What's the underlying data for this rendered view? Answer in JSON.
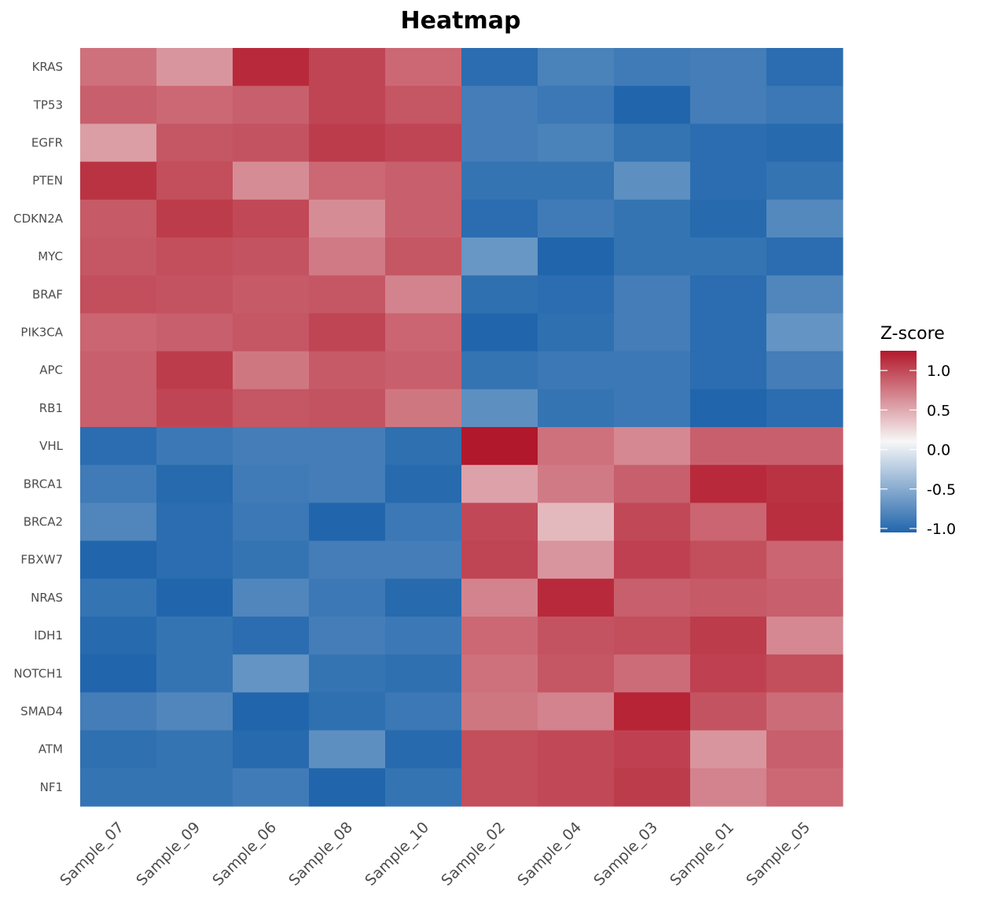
{
  "chart_data": {
    "type": "heatmap",
    "title": "Heatmap",
    "xlabel": "",
    "ylabel": "",
    "x_categories": [
      "Sample_07",
      "Sample_09",
      "Sample_06",
      "Sample_08",
      "Sample_10",
      "Sample_02",
      "Sample_04",
      "Sample_03",
      "Sample_01",
      "Sample_05"
    ],
    "y_categories": [
      "KRAS",
      "TP53",
      "EGFR",
      "PTEN",
      "CDKN2A",
      "MYC",
      "BRAF",
      "PIK3CA",
      "APC",
      "RB1",
      "VHL",
      "BRCA1",
      "BRCA2",
      "FBXW7",
      "NRAS",
      "IDH1",
      "NOTCH1",
      "SMAD4",
      "ATM",
      "NF1"
    ],
    "values": [
      [
        0.75,
        0.55,
        1.15,
        1.0,
        0.8,
        -1.0,
        -0.85,
        -0.9,
        -0.88,
        -1.0
      ],
      [
        0.85,
        0.8,
        0.85,
        1.0,
        0.9,
        -0.88,
        -0.92,
        -1.05,
        -0.88,
        -0.92
      ],
      [
        0.5,
        0.9,
        0.92,
        1.05,
        1.0,
        -0.88,
        -0.85,
        -0.95,
        -1.0,
        -1.02
      ],
      [
        1.1,
        0.95,
        0.6,
        0.8,
        0.85,
        -0.95,
        -0.95,
        -0.75,
        -1.0,
        -0.95
      ],
      [
        0.88,
        1.05,
        0.98,
        0.6,
        0.85,
        -1.0,
        -0.9,
        -0.95,
        -1.02,
        -0.8
      ],
      [
        0.9,
        0.95,
        0.92,
        0.7,
        0.9,
        -0.7,
        -1.08,
        -0.95,
        -0.95,
        -1.0
      ],
      [
        0.95,
        0.92,
        0.88,
        0.9,
        0.65,
        -0.98,
        -1.0,
        -0.88,
        -1.0,
        -0.82
      ],
      [
        0.82,
        0.85,
        0.9,
        1.0,
        0.82,
        -1.05,
        -0.98,
        -0.88,
        -1.0,
        -0.72
      ],
      [
        0.85,
        1.05,
        0.72,
        0.88,
        0.85,
        -0.95,
        -0.92,
        -0.92,
        -1.0,
        -0.88
      ],
      [
        0.85,
        1.0,
        0.9,
        0.92,
        0.72,
        -0.75,
        -0.95,
        -0.92,
        -1.05,
        -1.0
      ],
      [
        -1.0,
        -0.92,
        -0.88,
        -0.88,
        -0.98,
        1.25,
        0.75,
        0.62,
        0.85,
        0.85
      ],
      [
        -0.9,
        -1.02,
        -0.9,
        -0.88,
        -1.02,
        0.48,
        0.7,
        0.85,
        1.15,
        1.1
      ],
      [
        -0.82,
        -1.0,
        -0.92,
        -1.1,
        -0.92,
        0.98,
        0.35,
        0.98,
        0.82,
        1.12
      ],
      [
        -1.05,
        -1.0,
        -0.95,
        -0.88,
        -0.88,
        1.0,
        0.55,
        1.02,
        0.95,
        0.82
      ],
      [
        -0.95,
        -1.05,
        -0.82,
        -0.92,
        -1.02,
        0.65,
        1.15,
        0.85,
        0.88,
        0.85
      ],
      [
        -1.02,
        -0.95,
        -1.0,
        -0.88,
        -0.92,
        0.8,
        0.92,
        0.95,
        1.05,
        0.62
      ],
      [
        -1.12,
        -0.95,
        -0.72,
        -0.95,
        -0.98,
        0.75,
        0.9,
        0.78,
        1.02,
        0.95
      ],
      [
        -0.88,
        -0.82,
        -1.05,
        -0.98,
        -0.92,
        0.72,
        0.65,
        1.18,
        0.92,
        0.78
      ],
      [
        -0.98,
        -0.95,
        -1.02,
        -0.75,
        -1.02,
        0.95,
        0.98,
        1.02,
        0.55,
        0.85
      ],
      [
        -0.95,
        -0.95,
        -0.9,
        -1.05,
        -0.95,
        0.95,
        0.98,
        1.05,
        0.65,
        0.8
      ]
    ],
    "legend": {
      "title": "Z-score",
      "position": "right",
      "ticks": [
        1.0,
        0.5,
        0.0,
        -0.5,
        -1.0
      ],
      "tick_labels": [
        "1.0",
        "0.5",
        "0.0",
        "-0.5",
        "-1.0"
      ],
      "range": [
        -1.05,
        1.25
      ]
    },
    "colors": {
      "low": "#2166ac",
      "mid": "#f7f7f7",
      "high": "#b2182b"
    }
  }
}
